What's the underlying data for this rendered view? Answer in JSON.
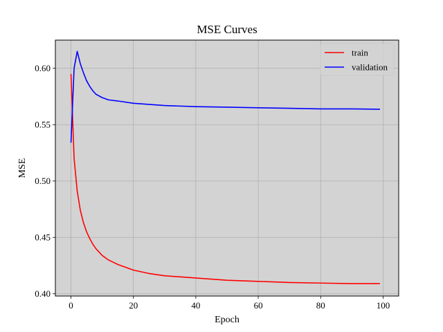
{
  "chart_data": {
    "type": "line",
    "title": "MSE Curves",
    "xlabel": "Epoch",
    "ylabel": "MSE",
    "xlim": [
      -5,
      105
    ],
    "ylim": [
      0.398,
      0.625
    ],
    "xticks": [
      0,
      20,
      40,
      60,
      80,
      100
    ],
    "xtick_labels": [
      "0",
      "20",
      "40",
      "60",
      "80",
      "100"
    ],
    "yticks": [
      0.4,
      0.45,
      0.5,
      0.55,
      0.6
    ],
    "ytick_labels": [
      "0.40",
      "0.45",
      "0.50",
      "0.55",
      "0.60"
    ],
    "grid": true,
    "background_color": "#d3d3d3",
    "legend_position": "top-right",
    "series": [
      {
        "name": "train",
        "color": "#ff0000",
        "x": [
          0,
          1,
          2,
          3,
          4,
          5,
          6,
          7,
          8,
          10,
          12,
          15,
          20,
          25,
          30,
          40,
          50,
          60,
          70,
          80,
          90,
          99
        ],
        "y": [
          0.595,
          0.52,
          0.491,
          0.474,
          0.463,
          0.455,
          0.449,
          0.444,
          0.44,
          0.434,
          0.43,
          0.426,
          0.421,
          0.418,
          0.416,
          0.414,
          0.412,
          0.411,
          0.41,
          0.4095,
          0.409,
          0.409
        ]
      },
      {
        "name": "validation",
        "color": "#0000ff",
        "x": [
          0,
          1,
          2,
          3,
          4,
          5,
          6,
          7,
          8,
          10,
          12,
          15,
          20,
          25,
          30,
          40,
          50,
          60,
          70,
          80,
          90,
          99
        ],
        "y": [
          0.534,
          0.6,
          0.615,
          0.604,
          0.596,
          0.589,
          0.584,
          0.58,
          0.577,
          0.574,
          0.572,
          0.571,
          0.569,
          0.568,
          0.567,
          0.566,
          0.5655,
          0.565,
          0.5645,
          0.564,
          0.564,
          0.5637
        ]
      }
    ]
  }
}
